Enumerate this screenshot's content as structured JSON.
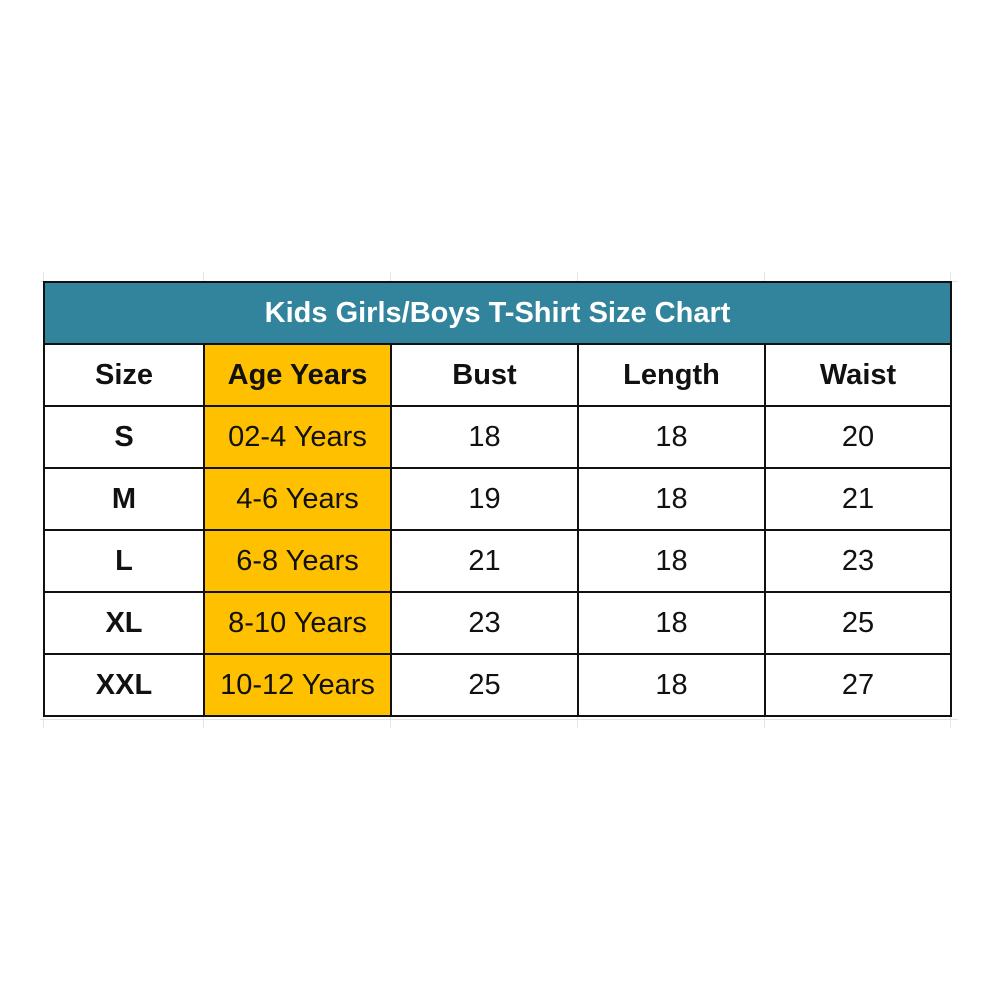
{
  "title": "Kids Girls/Boys T-Shirt Size Chart",
  "colors": {
    "title_bg": "#31849b",
    "age_column_bg": "#ffc000"
  },
  "headers": [
    "Size",
    "Age Years",
    "Bust",
    "Length",
    "Waist"
  ],
  "rows": [
    [
      "S",
      "02-4 Years",
      "18",
      "18",
      "20"
    ],
    [
      "M",
      "4-6 Years",
      "19",
      "18",
      "21"
    ],
    [
      "L",
      "6-8 Years",
      "21",
      "18",
      "23"
    ],
    [
      "XL",
      "8-10 Years",
      "23",
      "18",
      "25"
    ],
    [
      "XXL",
      "10-12 Years",
      "25",
      "18",
      "27"
    ]
  ]
}
